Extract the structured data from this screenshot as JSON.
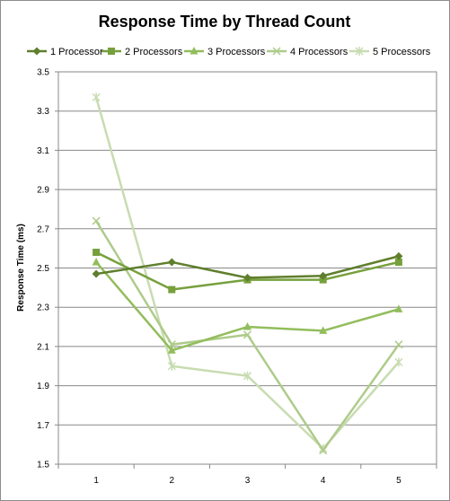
{
  "chart_data": {
    "type": "line",
    "title": "Response Time by Thread Count",
    "xlabel": "",
    "ylabel": "Response Time (ms)",
    "x": [
      1,
      2,
      3,
      4,
      5
    ],
    "x_tick_labels": [
      "1",
      "2",
      "3",
      "4",
      "5"
    ],
    "ylim": [
      1.5,
      3.5
    ],
    "y_ticks": [
      1.5,
      1.7,
      1.9,
      2.1,
      2.3,
      2.5,
      2.7,
      2.9,
      3.1,
      3.3,
      3.5
    ],
    "y_tick_labels": [
      "1.5",
      "1.7",
      "1.9",
      "2.1",
      "2.3",
      "2.5",
      "2.7",
      "2.9",
      "3.1",
      "3.3",
      "3.5"
    ],
    "grid": true,
    "legend_position": "top",
    "series": [
      {
        "name": "1 Processor",
        "marker": "diamond",
        "color": "#5f7f2d",
        "values": [
          2.47,
          2.53,
          2.45,
          2.46,
          2.56
        ]
      },
      {
        "name": "2 Processors",
        "marker": "square",
        "color": "#77a03c",
        "values": [
          2.58,
          2.39,
          2.44,
          2.44,
          2.53
        ]
      },
      {
        "name": "3 Processors",
        "marker": "triangle",
        "color": "#92bd5c",
        "values": [
          2.53,
          2.08,
          2.2,
          2.18,
          2.29
        ]
      },
      {
        "name": "4 Processors",
        "marker": "x",
        "color": "#aecb8a",
        "values": [
          2.74,
          2.11,
          2.16,
          1.57,
          2.11
        ]
      },
      {
        "name": "5 Processors",
        "marker": "star",
        "color": "#c8dcb1",
        "values": [
          3.37,
          2.0,
          1.95,
          1.58,
          2.02
        ]
      }
    ]
  }
}
